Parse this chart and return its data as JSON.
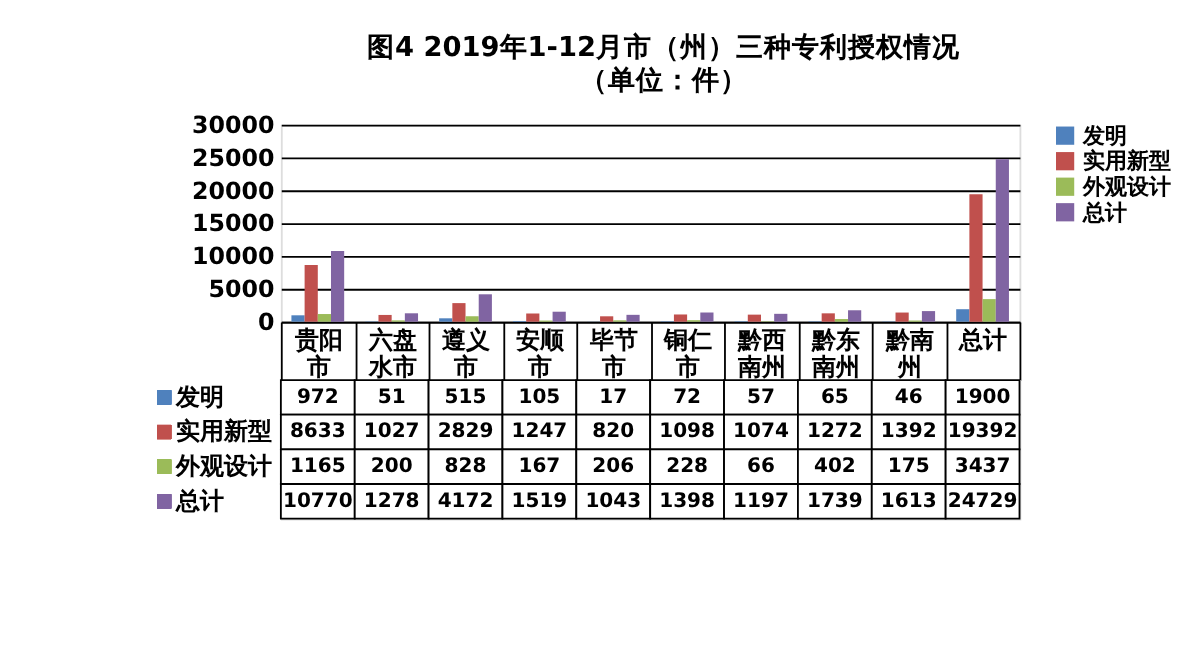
{
  "chart_data": {
    "type": "bar",
    "title": "图4  2019年1-12月市（州）三种专利授权情况",
    "subtitle": "（单位：件）",
    "categories": [
      "贵阳市",
      "六盘水市",
      "遵义市",
      "安顺市",
      "毕节市",
      "铜仁市",
      "黔西南州",
      "黔东南州",
      "黔南州",
      "总计"
    ],
    "series": [
      {
        "name": "发明",
        "color": "#4f81bd",
        "values": [
          972,
          51,
          515,
          105,
          17,
          72,
          57,
          65,
          46,
          1900
        ]
      },
      {
        "name": "实用新型",
        "color": "#c0504d",
        "values": [
          8633,
          1027,
          2829,
          1247,
          820,
          1098,
          1074,
          1272,
          1392,
          19392
        ]
      },
      {
        "name": "外观设计",
        "color": "#9bbb59",
        "values": [
          1165,
          200,
          828,
          167,
          206,
          228,
          66,
          402,
          175,
          3437
        ]
      },
      {
        "name": "总计",
        "color": "#8064a2",
        "values": [
          10770,
          1278,
          4172,
          1519,
          1043,
          1398,
          1197,
          1739,
          1613,
          24729
        ]
      }
    ],
    "ylim": [
      0,
      30000
    ],
    "yticks": [
      0,
      5000,
      10000,
      15000,
      20000,
      25000,
      30000
    ],
    "grid": "y",
    "legend": "right",
    "data_labels": true
  }
}
